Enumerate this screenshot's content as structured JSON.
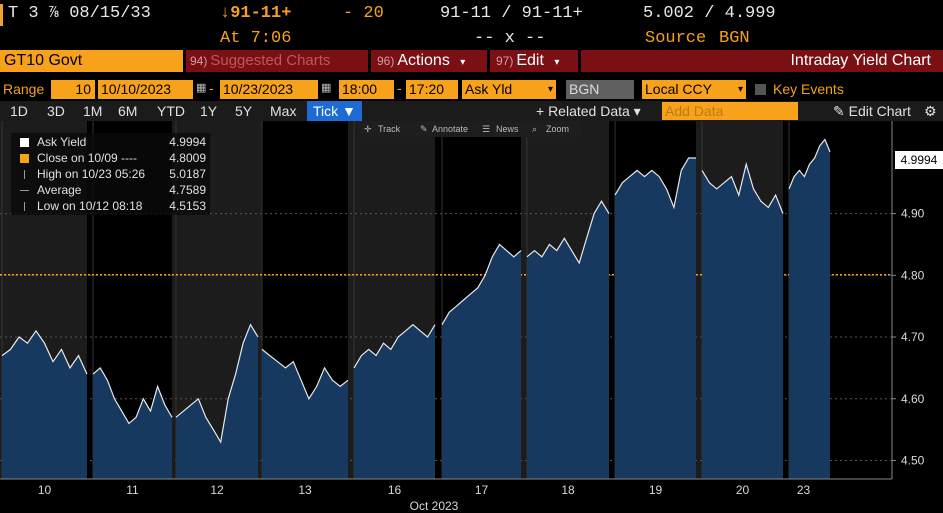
{
  "quote": {
    "ticker": "T 3 ⅞ 08/15/33",
    "change_arrow_price": "↓91-11+",
    "change": "- 20",
    "bid_ask": "91-11 / 91-11+",
    "yields": "5.002 / 4.999",
    "time_label": "At 7:06",
    "size": "-- x --",
    "source_label": "Source",
    "source_value": "BGN"
  },
  "header": {
    "security": "GT10 Govt",
    "suggested_num": "94)",
    "suggested_label": "Suggested Charts",
    "actions_num": "96)",
    "actions_label": "Actions",
    "edit_num": "97)",
    "edit_label": "Edit",
    "chart_name": "Intraday Yield Chart",
    "menu_arrow": "▾"
  },
  "range": {
    "label": "Range",
    "interval": "10",
    "start_date": "10/10/2023",
    "end_date": "10/23/2023",
    "start_time": "18:00",
    "end_time": "17:20",
    "field": "Ask Yld",
    "source": "BGN",
    "currency": "Local CCY",
    "key_events": "Key Events"
  },
  "periods": [
    "1D",
    "3D",
    "1M",
    "6M",
    "YTD",
    "1Y",
    "5Y",
    "Max"
  ],
  "tick_label": "Tick ▼",
  "related_data": "+ Related Data ▾",
  "add_data_placeholder": "Add Data",
  "edit_chart": "✎ Edit Chart",
  "settings_icon": "⚙",
  "mini_toolbar": {
    "track": "Track",
    "annotate": "Annotate",
    "news": "News",
    "zoom": "Zoom"
  },
  "legend": [
    {
      "label": "Ask Yield",
      "value": "4.9994",
      "color": "#ffffff"
    },
    {
      "label": "Close on 10/09 ----",
      "value": "4.8009",
      "color": "#f8a21b"
    },
    {
      "label": "High on 10/23 05:26",
      "value": "5.0187",
      "color": "#9a9a9a"
    },
    {
      "label": "Average",
      "value": "4.7589",
      "color": "#9a9a9a"
    },
    {
      "label": "Low on 10/12 08:18",
      "value": "4.5153",
      "color": "#9a9a9a"
    }
  ],
  "last_value_tag": "4.9994",
  "chart_data": {
    "type": "area",
    "xlabel": "Oct 2023",
    "ylabel": "",
    "ylim": [
      4.47,
      5.05
    ],
    "yticks": [
      "4.50",
      "4.60",
      "4.70",
      "4.80",
      "4.90"
    ],
    "reference_line": 4.8009,
    "categories": [
      "10",
      "11",
      "12",
      "13",
      "16",
      "17",
      "18",
      "19",
      "20",
      "23"
    ],
    "series": [
      {
        "values": [
          [
            4.67,
            4.68,
            4.7,
            4.69,
            4.71,
            4.69,
            4.66,
            4.68,
            4.65,
            4.67,
            4.64
          ],
          [
            4.64,
            4.65,
            4.63,
            4.6,
            4.58,
            4.56,
            4.57,
            4.6,
            4.58,
            4.62,
            4.59,
            4.57
          ],
          [
            4.57,
            4.58,
            4.59,
            4.6,
            4.57,
            4.55,
            4.53,
            4.6,
            4.64,
            4.69,
            4.72,
            4.7
          ],
          [
            4.68,
            4.67,
            4.66,
            4.65,
            4.66,
            4.63,
            4.6,
            4.62,
            4.65,
            4.63,
            4.62,
            4.63
          ],
          [
            4.65,
            4.67,
            4.68,
            4.67,
            4.69,
            4.68,
            4.7,
            4.71,
            4.72,
            4.71,
            4.7,
            4.72
          ],
          [
            4.72,
            4.74,
            4.75,
            4.76,
            4.77,
            4.78,
            4.8,
            4.83,
            4.85,
            4.84,
            4.83,
            4.84
          ],
          [
            4.83,
            4.84,
            4.83,
            4.85,
            4.84,
            4.86,
            4.84,
            4.82,
            4.86,
            4.9,
            4.92,
            4.9
          ],
          [
            4.93,
            4.95,
            4.96,
            4.97,
            4.96,
            4.97,
            4.96,
            4.94,
            4.91,
            4.97,
            4.99,
            4.99
          ],
          [
            4.97,
            4.95,
            4.94,
            4.95,
            4.96,
            4.93,
            4.98,
            4.94,
            4.92,
            4.91,
            4.93,
            4.9
          ],
          [
            4.94,
            4.96,
            4.97,
            4.96,
            4.98,
            4.99,
            5.01,
            5.02,
            5.0
          ]
        ]
      }
    ],
    "grid": true,
    "legend_position": "top-left"
  }
}
